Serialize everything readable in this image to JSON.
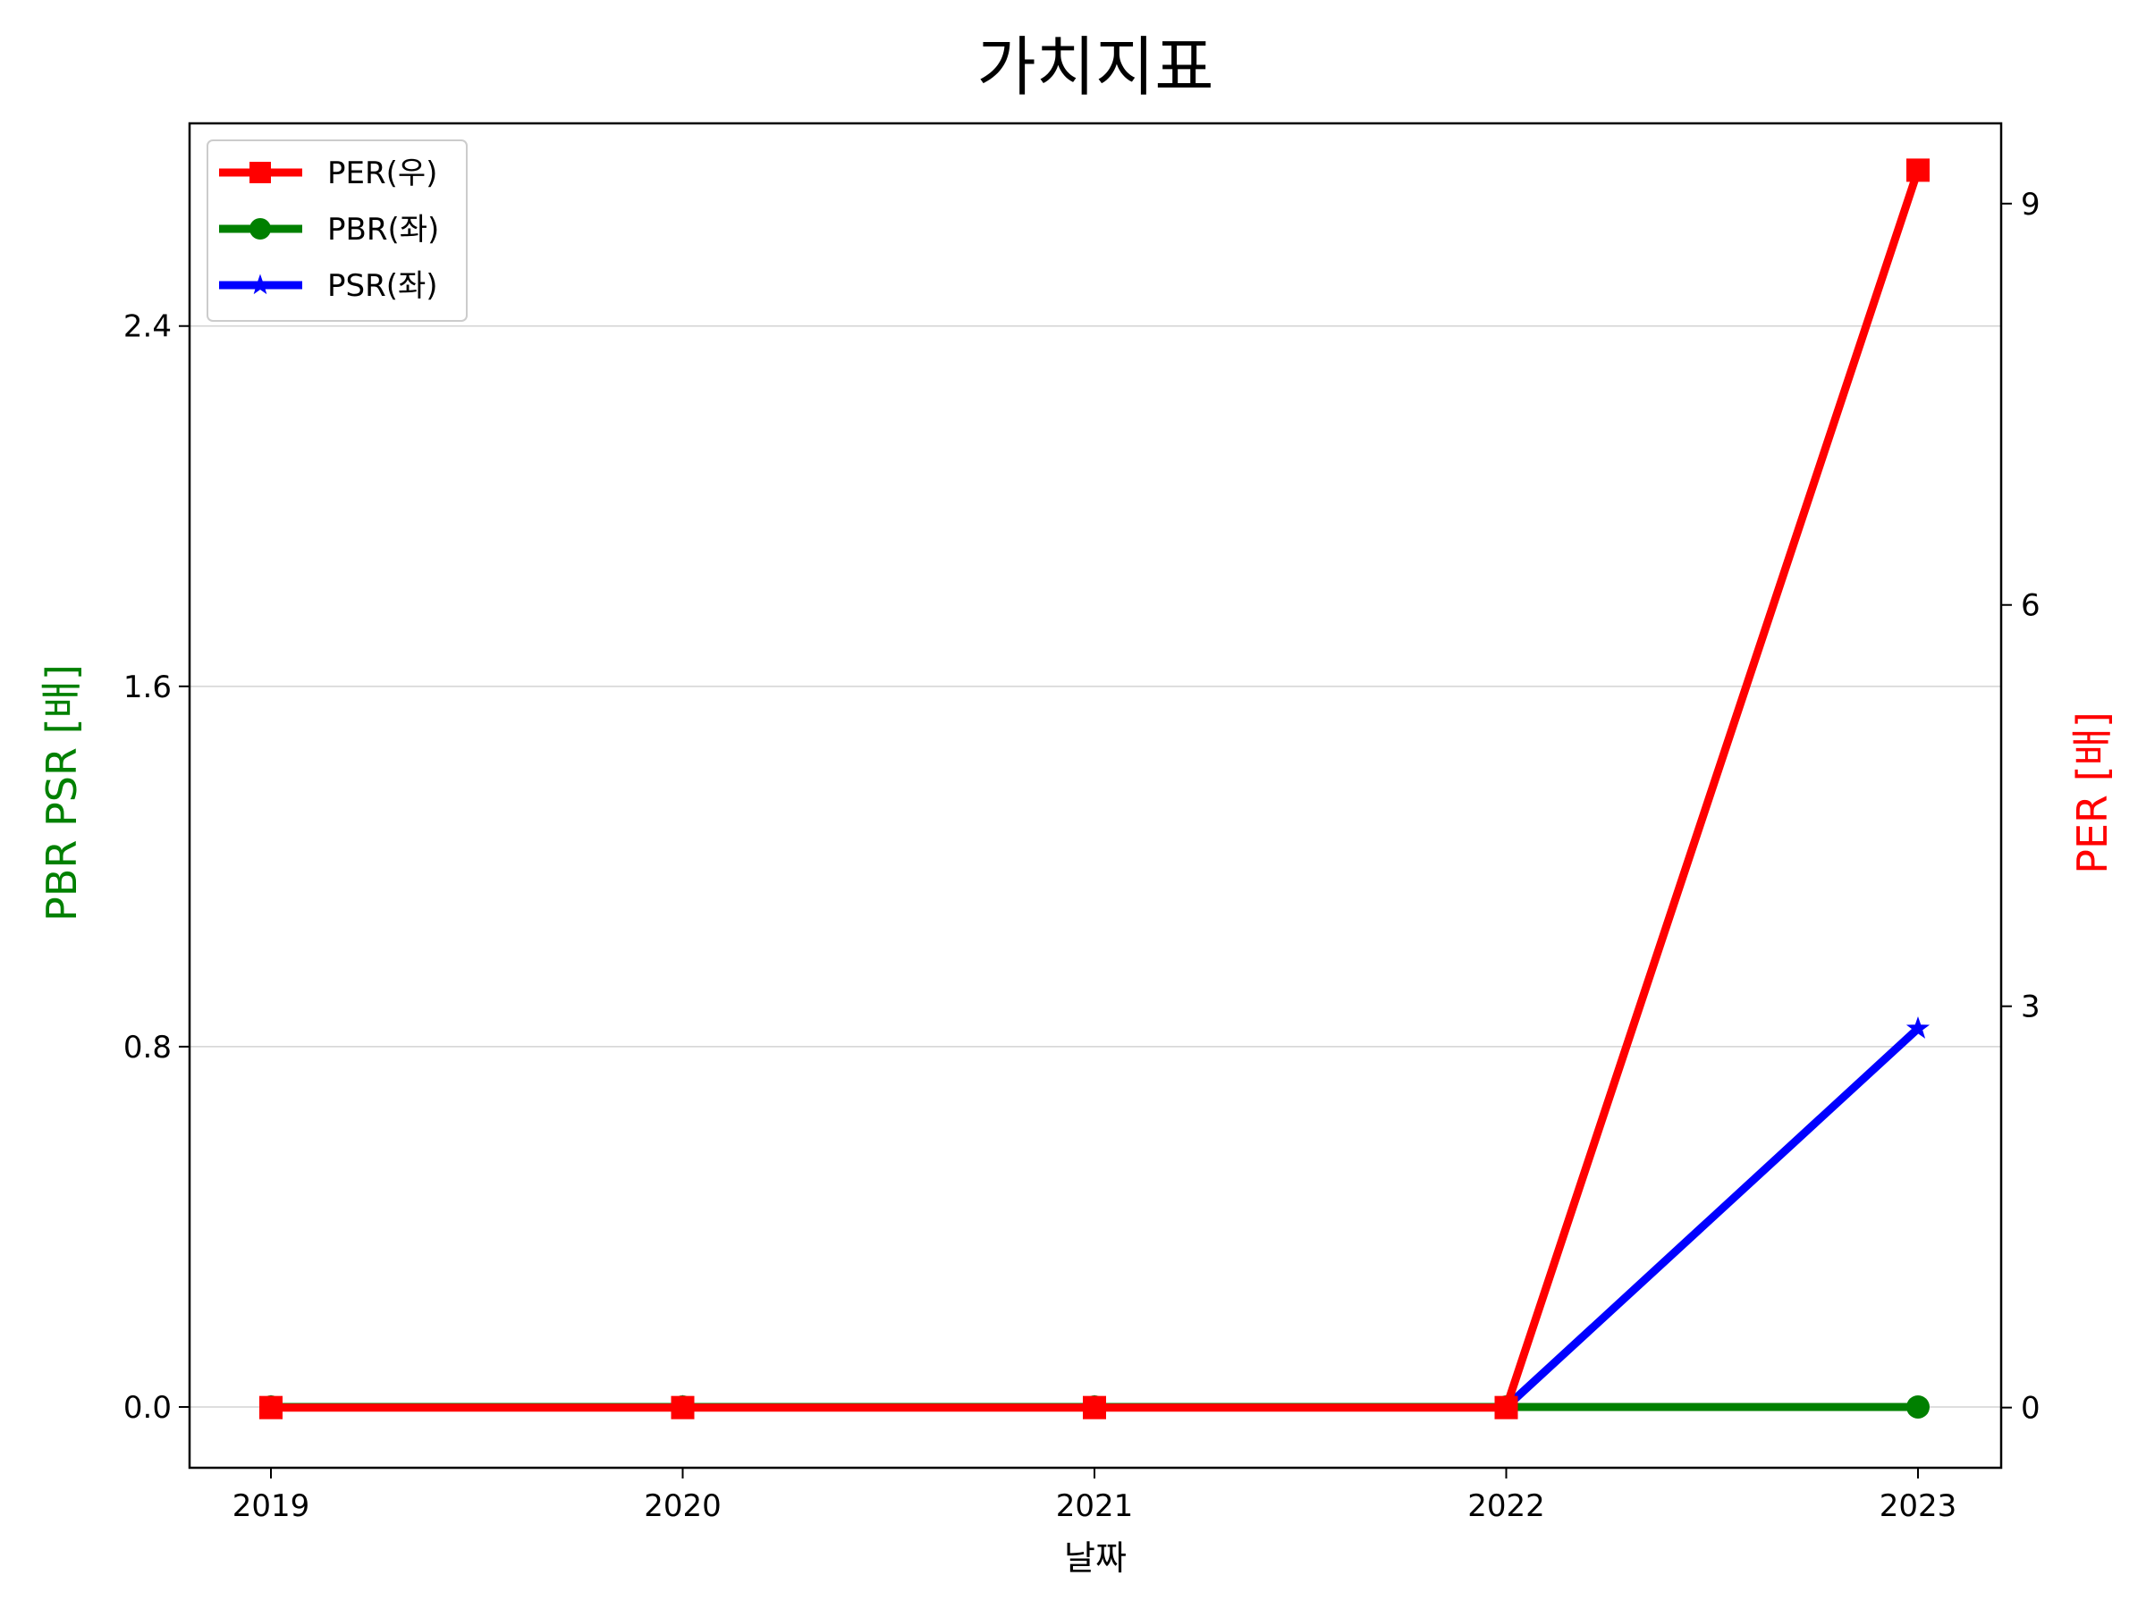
{
  "chart_data": {
    "type": "line",
    "title": "가치지표",
    "xlabel": "날짜",
    "ylabel_left": "PBR PSR [배]",
    "ylabel_right": "PER [배]",
    "categories": [
      "2019",
      "2020",
      "2021",
      "2022",
      "2023"
    ],
    "left_axis": {
      "ylim": [
        -0.135,
        2.85
      ],
      "ticks": [
        0.0,
        0.8,
        1.6,
        2.4
      ],
      "tick_labels": [
        "0.0",
        "0.8",
        "1.6",
        "2.4"
      ],
      "label_color": "#008000"
    },
    "right_axis": {
      "ylim": [
        -0.45,
        9.6
      ],
      "ticks": [
        0,
        3,
        6,
        9
      ],
      "tick_labels": [
        "0",
        "3",
        "6",
        "9"
      ],
      "label_color": "#ff0000"
    },
    "grid": "horizontal",
    "legend_position": "upper-left",
    "series": [
      {
        "name": "PER(우)",
        "axis": "right",
        "color": "#ff0000",
        "marker": "square",
        "values": [
          0,
          0,
          0,
          0,
          9.25
        ]
      },
      {
        "name": "PBR(좌)",
        "axis": "left",
        "color": "#008000",
        "marker": "circle",
        "values": [
          0,
          0,
          0,
          0,
          0
        ]
      },
      {
        "name": "PSR(좌)",
        "axis": "left",
        "color": "#0000ff",
        "marker": "star",
        "values": [
          0,
          0,
          0,
          0,
          0.84
        ]
      }
    ]
  }
}
